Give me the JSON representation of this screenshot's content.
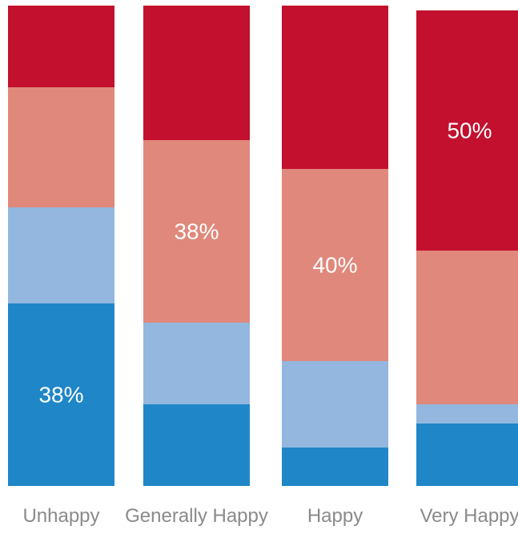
{
  "chart_data": {
    "type": "bar",
    "stacked": true,
    "normalized": true,
    "categories": [
      "Unhappy",
      "Generally Happy",
      "Happy",
      "Very Happy"
    ],
    "series": [
      {
        "values": [
          38,
          17,
          8,
          13
        ]
      },
      {
        "values": [
          20,
          17,
          18,
          4
        ]
      },
      {
        "values": [
          25,
          38,
          40,
          32
        ]
      },
      {
        "values": [
          17,
          28,
          34,
          50
        ]
      }
    ],
    "data_labels": [
      {
        "category": "Unhappy",
        "series_index": 0,
        "text": "38%"
      },
      {
        "category": "Generally Happy",
        "series_index": 2,
        "text": "38%"
      },
      {
        "category": "Happy",
        "series_index": 2,
        "text": "40%"
      },
      {
        "category": "Very Happy",
        "series_index": 3,
        "text": "50%"
      }
    ],
    "ylim": [
      0,
      100
    ],
    "grid": false,
    "legend": "none",
    "colors": [
      "#1f87c8",
      "#93b7de",
      "#e0887b",
      "#c3102f"
    ]
  }
}
